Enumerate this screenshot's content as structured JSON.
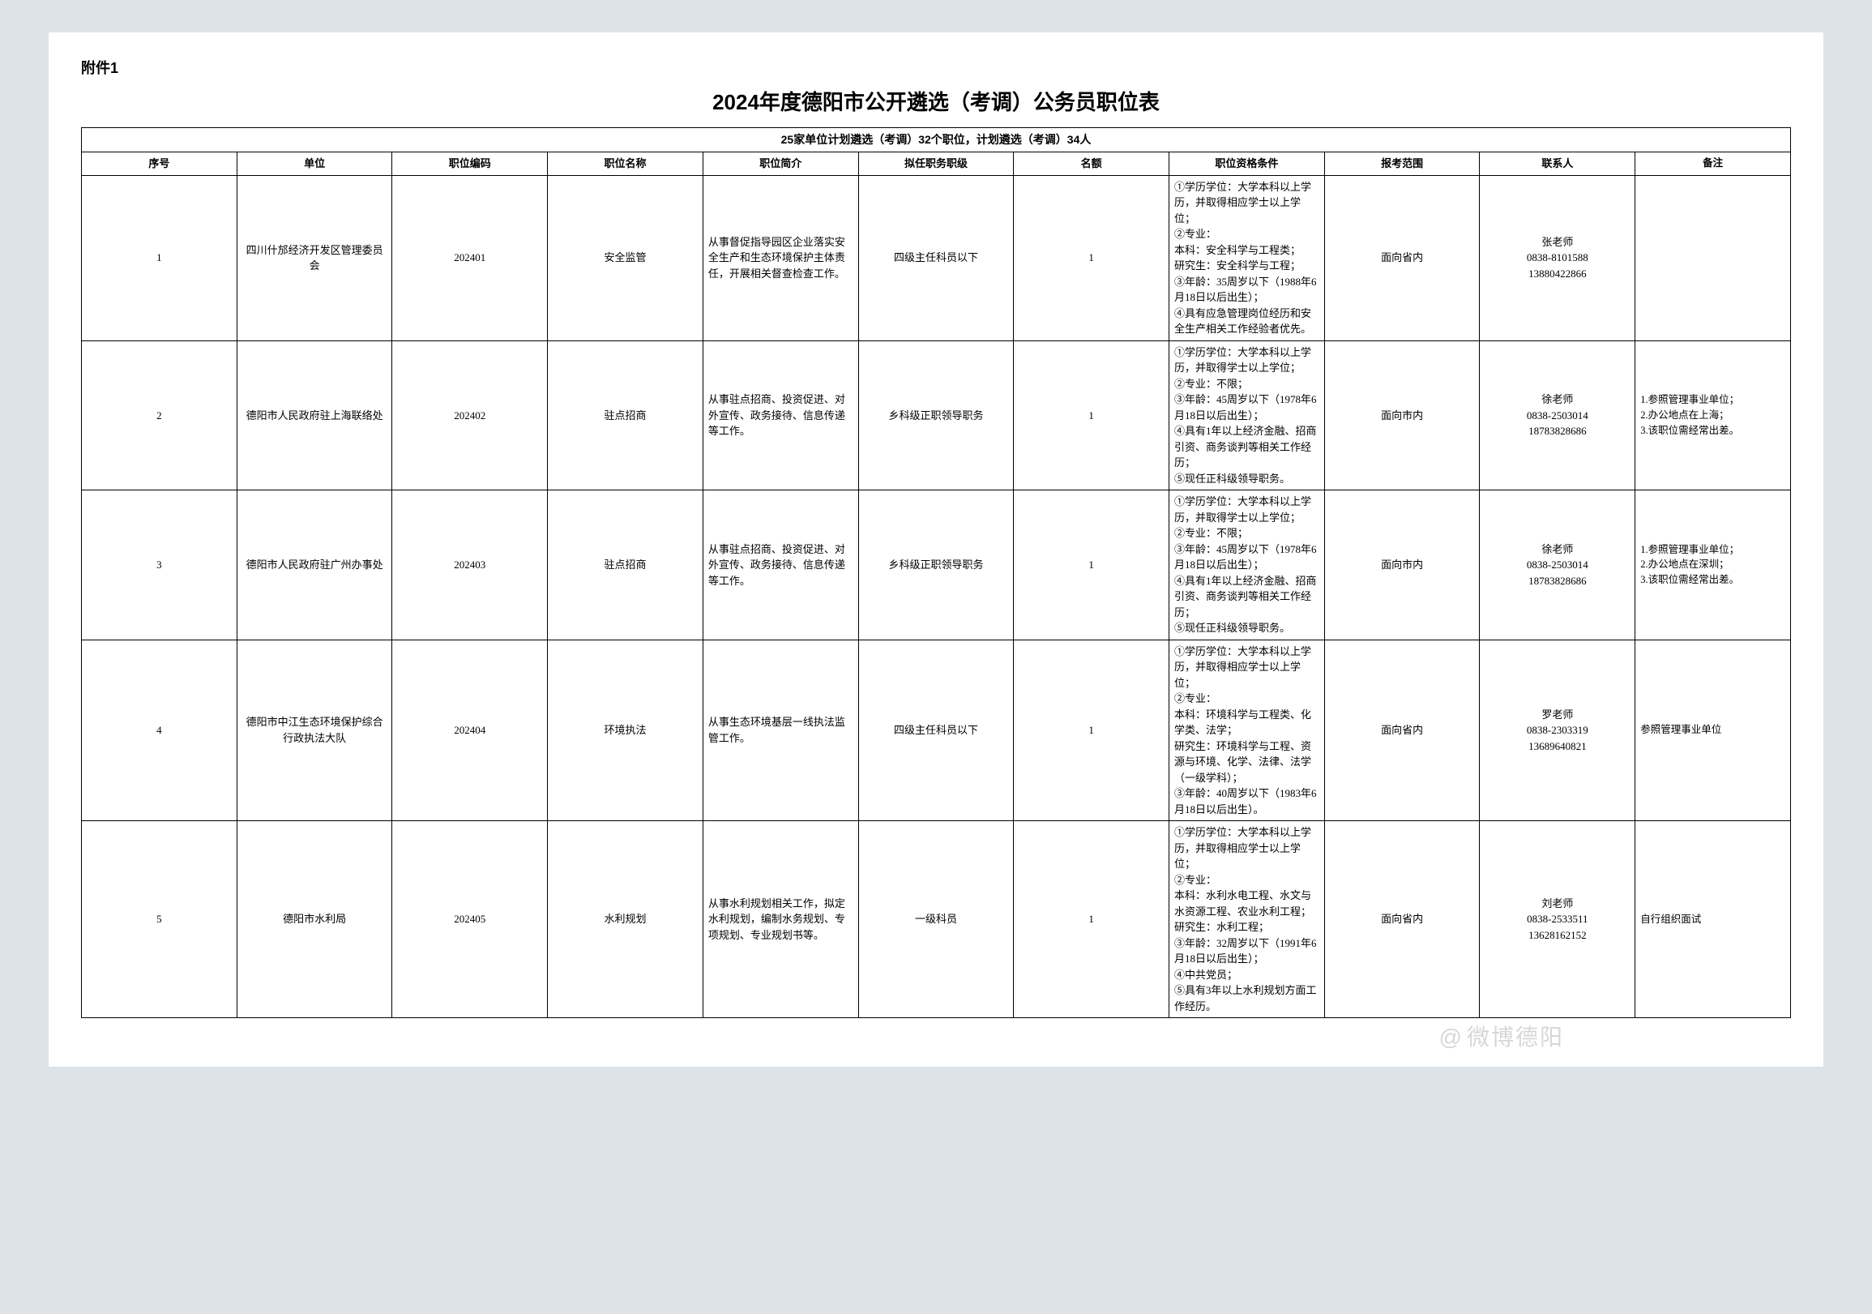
{
  "attachment_label": "附件1",
  "title": "2024年度德阳市公开遴选（考调）公务员职位表",
  "summary": "25家单位计划遴选（考调）32个职位，计划遴选（考调）34人",
  "watermark": "微博德阳",
  "columns": {
    "seq": "序号",
    "unit": "单位",
    "code": "职位编码",
    "pname": "职位名称",
    "desc": "职位简介",
    "rank": "拟任职务职级",
    "quota": "名额",
    "qual": "职位资格条件",
    "scope": "报考范围",
    "contact": "联系人",
    "remark": "备注"
  },
  "rows": [
    {
      "seq": "1",
      "unit": "四川什邡经济开发区管理委员会",
      "code": "202401",
      "pname": "安全监管",
      "desc": "从事督促指导园区企业落实安全生产和生态环境保护主体责任，开展相关督查检查工作。",
      "rank": "四级主任科员以下",
      "quota": "1",
      "qual": "①学历学位：大学本科以上学历，并取得相应学士以上学位；\n②专业：\n本科：安全科学与工程类；\n研究生：安全科学与工程；\n③年龄：35周岁以下（1988年6月18日以后出生）；\n④具有应急管理岗位经历和安全生产相关工作经验者优先。",
      "scope": "面向省内",
      "contact": "张老师\n0838-8101588\n13880422866",
      "remark": ""
    },
    {
      "seq": "2",
      "unit": "德阳市人民政府驻上海联络处",
      "code": "202402",
      "pname": "驻点招商",
      "desc": "从事驻点招商、投资促进、对外宣传、政务接待、信息传递等工作。",
      "rank": "乡科级正职领导职务",
      "quota": "1",
      "qual": "①学历学位：大学本科以上学历，并取得学士以上学位；\n②专业：不限；\n③年龄：45周岁以下（1978年6月18日以后出生）；\n④具有1年以上经济金融、招商引资、商务谈判等相关工作经历；\n⑤现任正科级领导职务。",
      "scope": "面向市内",
      "contact": "徐老师\n0838-2503014\n18783828686",
      "remark": "1.参照管理事业单位；\n2.办公地点在上海；\n3.该职位需经常出差。"
    },
    {
      "seq": "3",
      "unit": "德阳市人民政府驻广州办事处",
      "code": "202403",
      "pname": "驻点招商",
      "desc": "从事驻点招商、投资促进、对外宣传、政务接待、信息传递等工作。",
      "rank": "乡科级正职领导职务",
      "quota": "1",
      "qual": "①学历学位：大学本科以上学历，并取得学士以上学位；\n②专业：不限；\n③年龄：45周岁以下（1978年6月18日以后出生）；\n④具有1年以上经济金融、招商引资、商务谈判等相关工作经历；\n⑤现任正科级领导职务。",
      "scope": "面向市内",
      "contact": "徐老师\n0838-2503014\n18783828686",
      "remark": "1.参照管理事业单位；\n2.办公地点在深圳；\n3.该职位需经常出差。"
    },
    {
      "seq": "4",
      "unit": "德阳市中江生态环境保护综合行政执法大队",
      "code": "202404",
      "pname": "环境执法",
      "desc": "从事生态环境基层一线执法监管工作。",
      "rank": "四级主任科员以下",
      "quota": "1",
      "qual": "①学历学位：大学本科以上学历，并取得相应学士以上学位；\n②专业：\n本科：环境科学与工程类、化学类、法学；\n研究生：环境科学与工程、资源与环境、化学、法律、法学（一级学科）；\n③年龄：40周岁以下（1983年6月18日以后出生）。",
      "scope": "面向省内",
      "contact": "罗老师\n0838-2303319\n13689640821",
      "remark": "参照管理事业单位"
    },
    {
      "seq": "5",
      "unit": "德阳市水利局",
      "code": "202405",
      "pname": "水利规划",
      "desc": "从事水利规划相关工作，拟定水利规划，编制水务规划、专项规划、专业规划书等。",
      "rank": "一级科员",
      "quota": "1",
      "qual": "①学历学位：大学本科以上学历，并取得相应学士以上学位；\n②专业：\n本科：水利水电工程、水文与水资源工程、农业水利工程；\n研究生：水利工程；\n③年龄：32周岁以下（1991年6月18日以后出生）；\n④中共党员；\n⑤具有3年以上水利规划方面工作经历。",
      "scope": "面向省内",
      "contact": "刘老师\n0838-2533511\n13628162152",
      "remark": "自行组织面试"
    }
  ]
}
